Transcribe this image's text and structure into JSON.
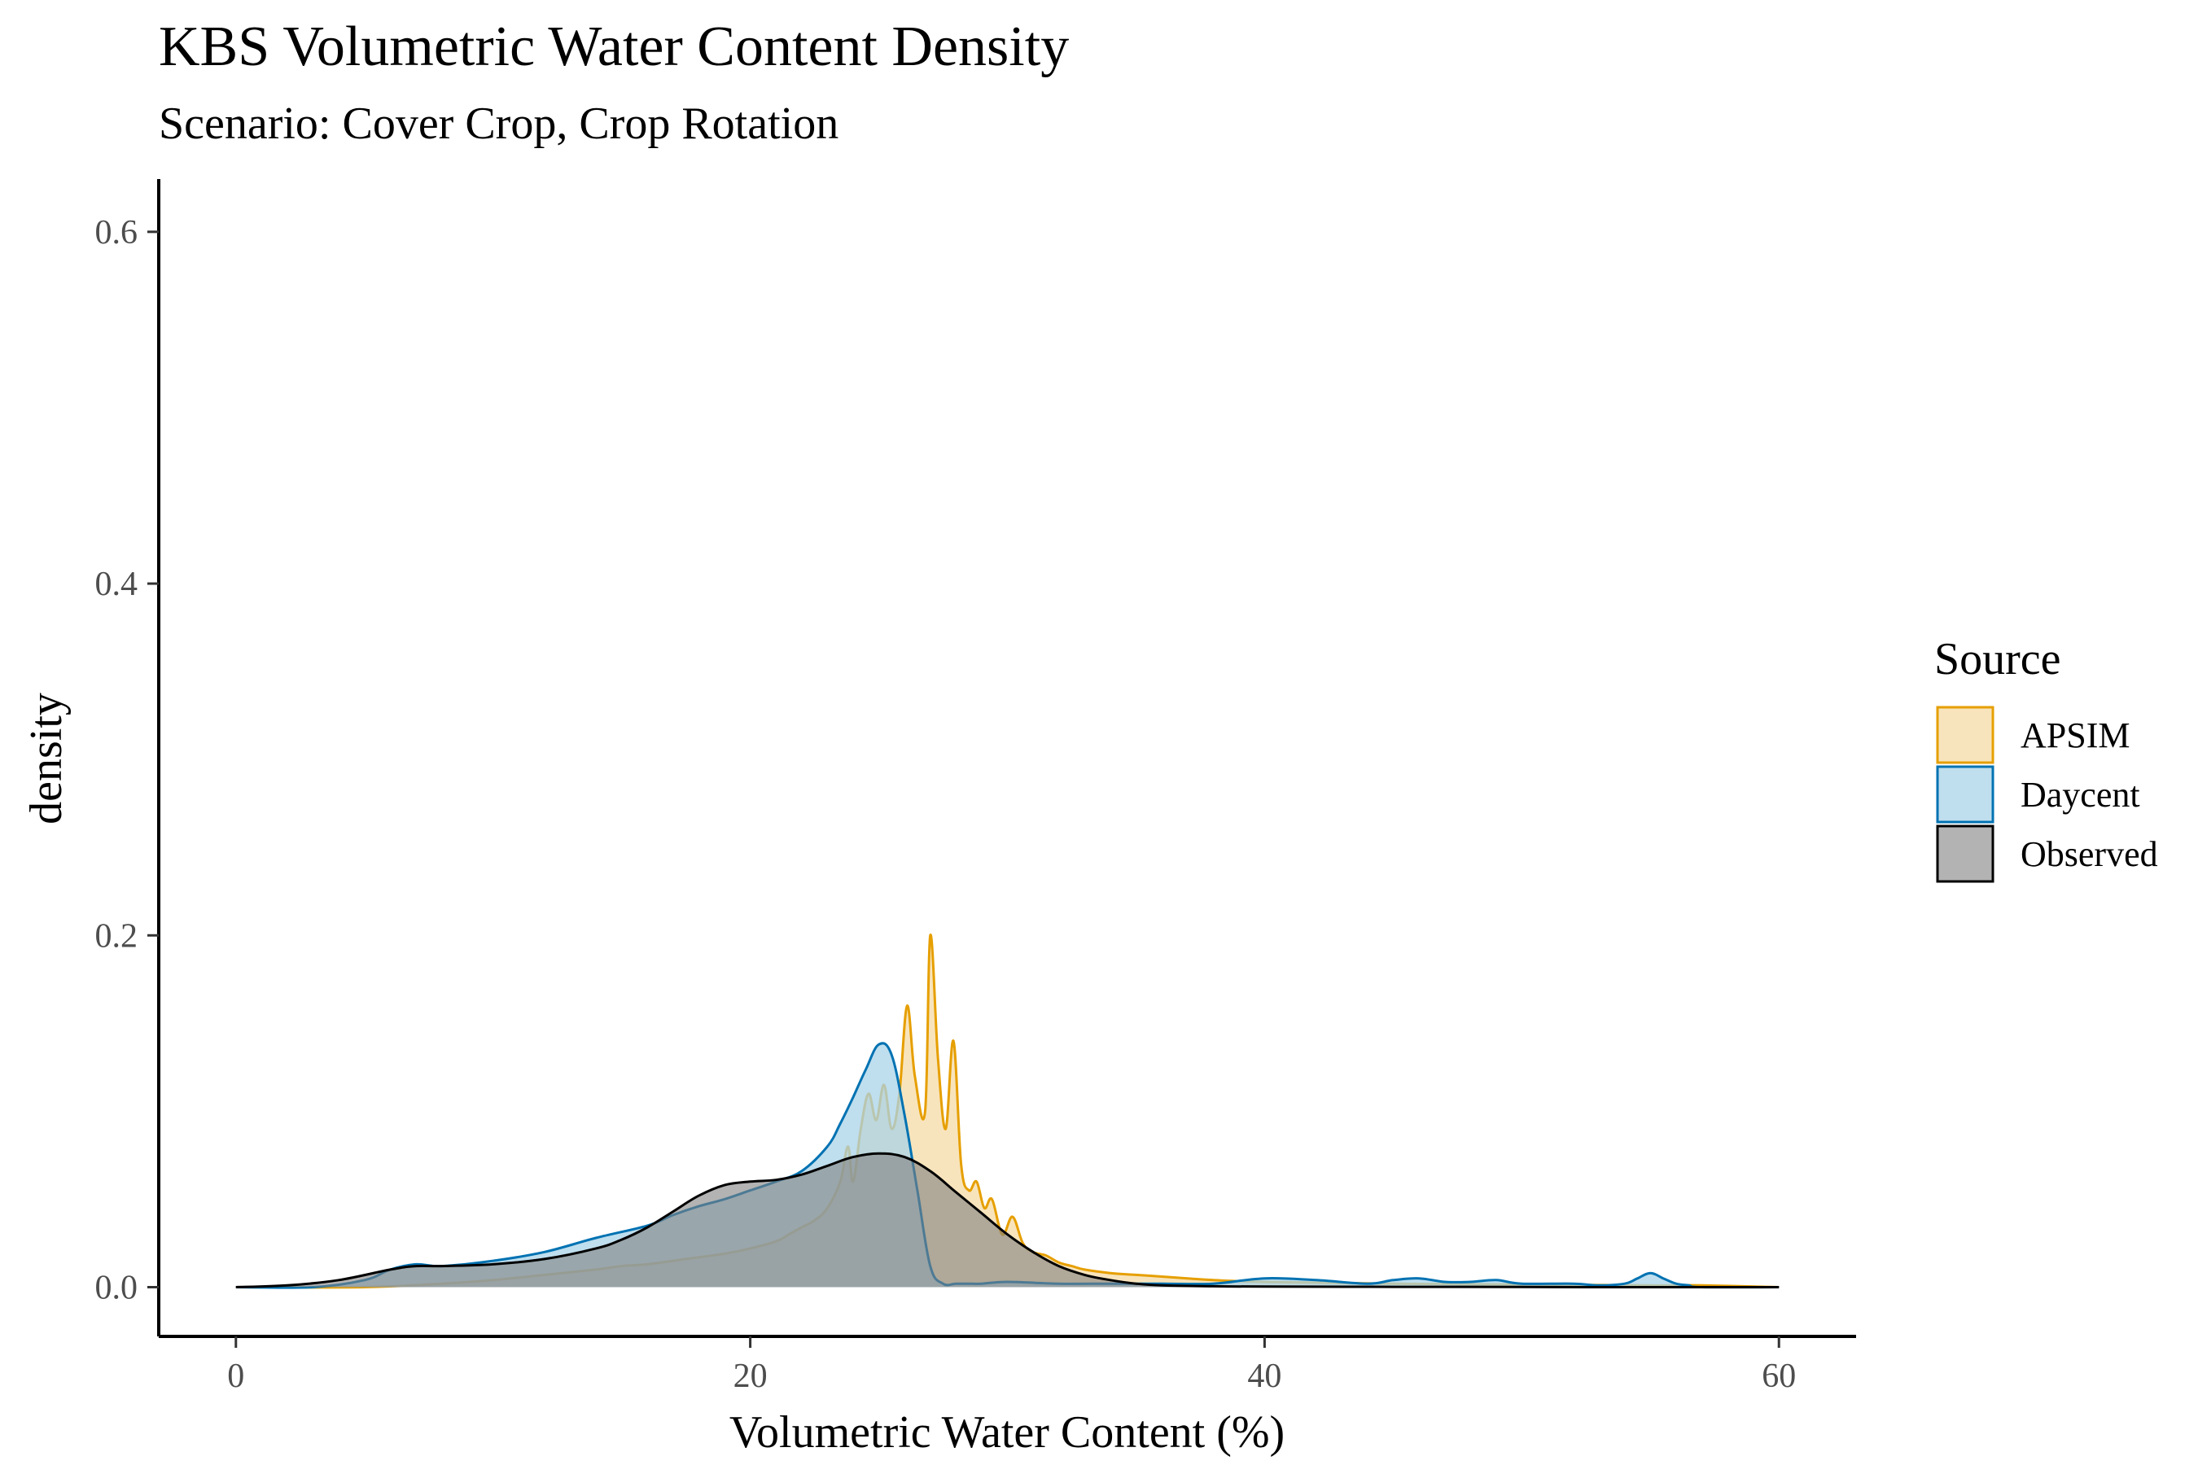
{
  "chart_data": {
    "type": "area",
    "title": "KBS Volumetric Water Content Density",
    "subtitle": "Scenario: Cover Crop, Crop Rotation",
    "xlabel": "Volumetric Water Content (%)",
    "ylabel": "density",
    "xlim": [
      -3,
      63
    ],
    "ylim": [
      -0.028,
      0.63
    ],
    "x_ticks": [
      0,
      20,
      40,
      60
    ],
    "x_tick_labels": [
      "0",
      "20",
      "40",
      "60"
    ],
    "y_ticks": [
      0.0,
      0.2,
      0.4,
      0.6
    ],
    "y_tick_labels": [
      "0.0",
      "0.2",
      "0.4",
      "0.6"
    ],
    "legend": {
      "title": "Source",
      "position": "right"
    },
    "series": [
      {
        "name": "APSIM",
        "stroke": "#E69F00",
        "fill": "#F6DBA6",
        "fill_opacity": 0.75,
        "x": [
          0,
          5,
          8,
          10,
          12,
          14,
          15,
          16,
          17,
          18,
          19,
          20,
          21,
          21.5,
          22,
          22.5,
          23,
          23.5,
          23.8,
          24,
          24.3,
          24.6,
          24.9,
          25.2,
          25.5,
          25.8,
          26.1,
          26.4,
          26.8,
          27.0,
          27.3,
          27.6,
          27.9,
          28.2,
          28.5,
          28.8,
          29.1,
          29.4,
          29.8,
          30.2,
          30.6,
          31,
          31.5,
          32,
          32.5,
          33,
          34,
          35,
          36,
          37,
          38,
          40,
          45,
          50,
          55,
          57,
          60
        ],
        "y": [
          0,
          0,
          0.002,
          0.004,
          0.007,
          0.01,
          0.012,
          0.013,
          0.015,
          0.017,
          0.019,
          0.022,
          0.026,
          0.03,
          0.034,
          0.038,
          0.045,
          0.06,
          0.08,
          0.06,
          0.09,
          0.11,
          0.095,
          0.115,
          0.09,
          0.11,
          0.16,
          0.12,
          0.1,
          0.2,
          0.13,
          0.09,
          0.14,
          0.07,
          0.055,
          0.06,
          0.045,
          0.05,
          0.03,
          0.04,
          0.025,
          0.02,
          0.018,
          0.014,
          0.012,
          0.01,
          0.008,
          0.007,
          0.006,
          0.005,
          0.004,
          0.003,
          0.002,
          0.0015,
          0.001,
          0.001,
          0
        ]
      },
      {
        "name": "Daycent",
        "stroke": "#0072B2",
        "fill": "#A9D3E8",
        "fill_opacity": 0.75,
        "x": [
          0,
          3,
          5,
          6,
          7,
          8,
          10,
          12,
          14,
          16,
          17,
          18,
          19,
          20,
          21,
          22,
          23,
          23.5,
          24,
          24.5,
          25,
          25.5,
          26,
          26.5,
          27,
          27.5,
          28,
          28.5,
          29,
          30,
          32,
          34,
          36,
          38,
          40,
          42,
          44,
          45,
          46,
          47,
          48,
          49,
          50,
          52,
          53,
          54,
          54.5,
          55,
          55.5,
          56,
          56.5,
          57,
          60
        ],
        "y": [
          0,
          0,
          0.004,
          0.01,
          0.013,
          0.012,
          0.015,
          0.02,
          0.028,
          0.035,
          0.041,
          0.046,
          0.05,
          0.055,
          0.06,
          0.066,
          0.08,
          0.093,
          0.108,
          0.124,
          0.138,
          0.132,
          0.098,
          0.055,
          0.012,
          0.002,
          0.002,
          0.002,
          0.002,
          0.003,
          0.002,
          0.002,
          0.002,
          0.002,
          0.005,
          0.004,
          0.002,
          0.004,
          0.005,
          0.003,
          0.003,
          0.004,
          0.002,
          0.002,
          0.001,
          0.002,
          0.005,
          0.008,
          0.005,
          0.002,
          0.001,
          0,
          0
        ]
      },
      {
        "name": "Observed",
        "stroke": "#000000",
        "fill": "#808080",
        "fill_opacity": 0.6,
        "x": [
          0,
          2,
          4,
          6,
          7,
          8,
          10,
          12,
          14,
          15,
          16,
          17,
          18,
          19,
          20,
          21,
          22,
          23,
          24,
          25,
          26,
          27,
          28,
          29,
          30,
          31,
          32,
          33,
          34,
          35,
          36,
          38,
          40,
          45,
          50,
          55,
          60
        ],
        "y": [
          0,
          0.001,
          0.004,
          0.01,
          0.012,
          0.012,
          0.013,
          0.016,
          0.022,
          0.027,
          0.034,
          0.043,
          0.052,
          0.058,
          0.06,
          0.061,
          0.064,
          0.069,
          0.074,
          0.076,
          0.074,
          0.066,
          0.054,
          0.042,
          0.03,
          0.02,
          0.012,
          0.007,
          0.004,
          0.002,
          0.001,
          0.0005,
          0.0003,
          0.0002,
          0.0001,
          0,
          0
        ]
      }
    ]
  },
  "colors": {
    "axis": "#000000",
    "tick_label": "#4D4D4D",
    "background": "#FFFFFF"
  }
}
